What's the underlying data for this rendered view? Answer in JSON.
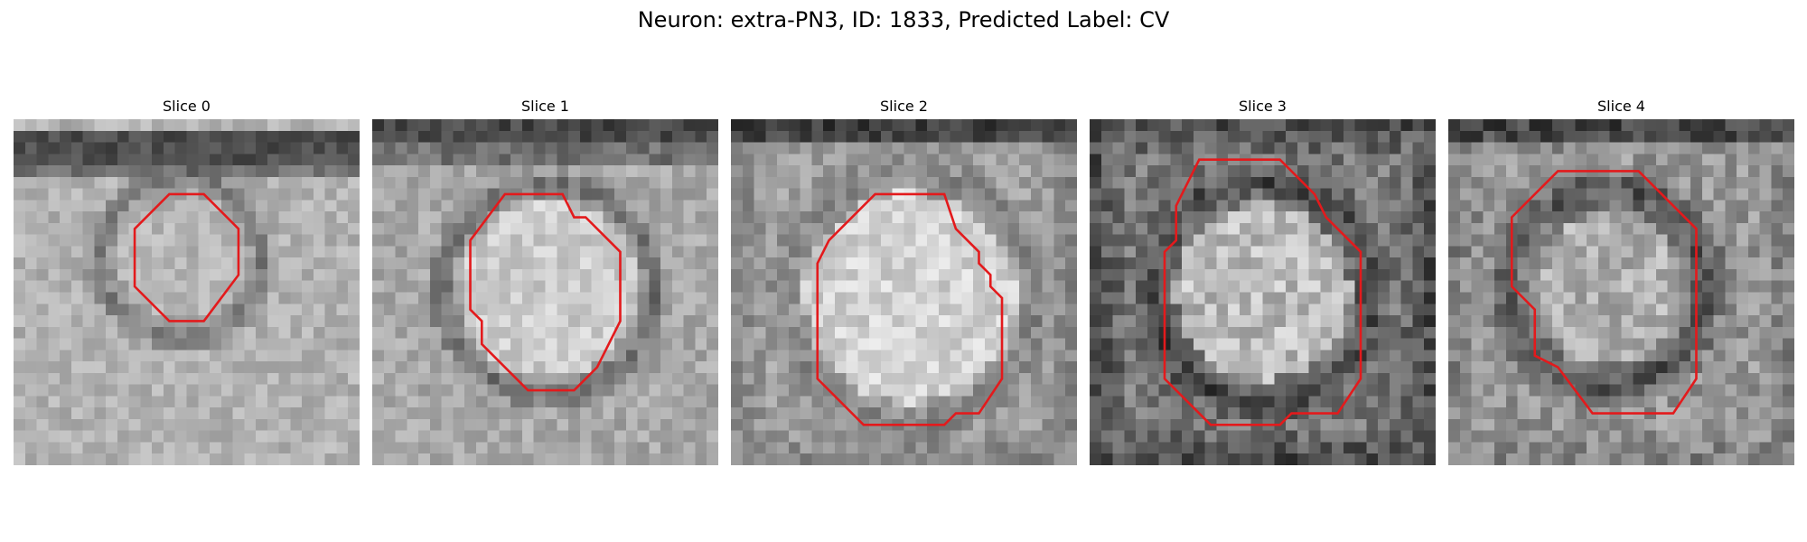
{
  "title": "Neuron: extra-PN3, ID: 1833, Predicted Label: CV",
  "contour_color": "#e31a1c",
  "image_colormap": "grayscale",
  "grid_size": 30,
  "slices": [
    {
      "label": "Slice 0",
      "contour": [
        [
          13.5,
          6.5
        ],
        [
          16.5,
          6.5
        ],
        [
          19.5,
          9.5
        ],
        [
          19.5,
          13.5
        ],
        [
          16.5,
          17.5
        ],
        [
          13.5,
          17.5
        ],
        [
          10.5,
          14.5
        ],
        [
          10.5,
          9.5
        ]
      ]
    },
    {
      "label": "Slice 1",
      "contour": [
        [
          11.5,
          6.5
        ],
        [
          16.5,
          6.5
        ],
        [
          17.5,
          8.5
        ],
        [
          18.5,
          8.5
        ],
        [
          21.5,
          11.5
        ],
        [
          21.5,
          17.5
        ],
        [
          20.5,
          19.5
        ],
        [
          19.5,
          21.5
        ],
        [
          17.5,
          23.5
        ],
        [
          13.5,
          23.5
        ],
        [
          9.5,
          19.5
        ],
        [
          9.5,
          17.5
        ],
        [
          8.5,
          16.5
        ],
        [
          8.5,
          10.5
        ]
      ]
    },
    {
      "label": "Slice 2",
      "contour": [
        [
          12.5,
          6.5
        ],
        [
          18.5,
          6.5
        ],
        [
          19.5,
          9.5
        ],
        [
          21.5,
          11.5
        ],
        [
          21.5,
          12.5
        ],
        [
          22.5,
          13.5
        ],
        [
          22.5,
          14.5
        ],
        [
          23.5,
          15.5
        ],
        [
          23.5,
          22.5
        ],
        [
          21.5,
          25.5
        ],
        [
          19.5,
          25.5
        ],
        [
          18.5,
          26.5
        ],
        [
          11.5,
          26.5
        ],
        [
          7.5,
          22.5
        ],
        [
          7.5,
          12.5
        ],
        [
          8.5,
          10.5
        ]
      ]
    },
    {
      "label": "Slice 3",
      "contour": [
        [
          9.5,
          3.5
        ],
        [
          16.5,
          3.5
        ],
        [
          19.5,
          6.5
        ],
        [
          20.5,
          8.5
        ],
        [
          23.5,
          11.5
        ],
        [
          23.5,
          22.5
        ],
        [
          21.5,
          25.5
        ],
        [
          17.5,
          25.5
        ],
        [
          16.5,
          26.5
        ],
        [
          10.5,
          26.5
        ],
        [
          6.5,
          22.5
        ],
        [
          6.5,
          11.5
        ],
        [
          7.5,
          10.5
        ],
        [
          7.5,
          7.5
        ]
      ]
    },
    {
      "label": "Slice 4",
      "contour": [
        [
          9.5,
          4.5
        ],
        [
          16.5,
          4.5
        ],
        [
          21.5,
          9.5
        ],
        [
          21.5,
          22.5
        ],
        [
          19.5,
          25.5
        ],
        [
          12.5,
          25.5
        ],
        [
          9.5,
          21.5
        ],
        [
          7.5,
          20.5
        ],
        [
          7.5,
          16.5
        ],
        [
          5.5,
          14.5
        ],
        [
          5.5,
          8.5
        ]
      ]
    }
  ]
}
